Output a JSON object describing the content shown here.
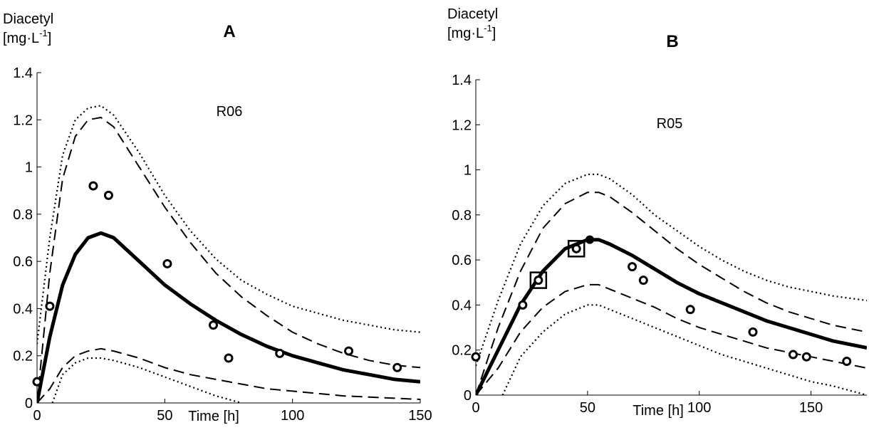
{
  "chart_data": [
    {
      "type": "line",
      "panel_letter": "A",
      "run_label": "R06",
      "ylabel_line1": "Diacetyl",
      "ylabel_line2": "[mg·L",
      "ylabel_exp": "-1",
      "ylabel_close": "]",
      "xlabel": "Time [h]",
      "xlim": [
        0,
        150
      ],
      "ylim": [
        0,
        1.4
      ],
      "xticks": [
        0,
        50,
        100,
        150
      ],
      "yticks": [
        0,
        0.2,
        0.4,
        0.6,
        0.8,
        1,
        1.2,
        1.4
      ],
      "ytick_labels": [
        "0",
        "0.2",
        "0.4",
        "0.6",
        "0.8",
        "1",
        "1.2",
        "1.4"
      ],
      "series": [
        {
          "style": "solid",
          "x": [
            0,
            5,
            10,
            15,
            20,
            25,
            30,
            40,
            50,
            60,
            70,
            80,
            90,
            100,
            110,
            120,
            130,
            140,
            150
          ],
          "y": [
            0,
            0.28,
            0.5,
            0.63,
            0.7,
            0.72,
            0.7,
            0.6,
            0.5,
            0.42,
            0.35,
            0.29,
            0.24,
            0.2,
            0.17,
            0.14,
            0.12,
            0.1,
            0.09
          ]
        },
        {
          "style": "dashed",
          "x": [
            0,
            5,
            10,
            15,
            20,
            25,
            30,
            40,
            50,
            60,
            70,
            80,
            90,
            100,
            110,
            120,
            130,
            140,
            150
          ],
          "y": [
            0,
            0.55,
            0.95,
            1.13,
            1.2,
            1.21,
            1.17,
            1.0,
            0.83,
            0.68,
            0.55,
            0.45,
            0.37,
            0.3,
            0.25,
            0.21,
            0.18,
            0.16,
            0.15
          ]
        },
        {
          "style": "dashed",
          "x": [
            0,
            5,
            10,
            15,
            20,
            25,
            30,
            40,
            50,
            60,
            70,
            80,
            90,
            100,
            110,
            120,
            130,
            140,
            150
          ],
          "y": [
            0,
            0.06,
            0.15,
            0.2,
            0.22,
            0.23,
            0.22,
            0.19,
            0.15,
            0.12,
            0.1,
            0.08,
            0.06,
            0.05,
            0.04,
            0.03,
            0.025,
            0.02,
            0.015
          ]
        },
        {
          "style": "dotted",
          "x": [
            0,
            5,
            10,
            15,
            20,
            25,
            30,
            40,
            50,
            60,
            70,
            80,
            90,
            100,
            110,
            120,
            130,
            140,
            150
          ],
          "y": [
            0.25,
            0.7,
            1.05,
            1.2,
            1.25,
            1.26,
            1.22,
            1.06,
            0.88,
            0.73,
            0.61,
            0.52,
            0.46,
            0.41,
            0.38,
            0.35,
            0.33,
            0.31,
            0.3
          ]
        },
        {
          "style": "dotted",
          "x": [
            6,
            10,
            15,
            20,
            25,
            30,
            40,
            50,
            60,
            70,
            80
          ],
          "y": [
            0,
            0.12,
            0.17,
            0.19,
            0.19,
            0.18,
            0.15,
            0.11,
            0.07,
            0.03,
            0
          ]
        }
      ],
      "points": {
        "x": [
          0,
          5,
          22,
          28,
          51,
          69,
          75,
          95,
          122,
          141
        ],
        "y": [
          0.09,
          0.41,
          0.92,
          0.88,
          0.59,
          0.33,
          0.19,
          0.21,
          0.22,
          0.15
        ]
      },
      "highlighted": {
        "x": [],
        "y": []
      },
      "filled_point": null
    },
    {
      "type": "line",
      "panel_letter": "B",
      "run_label": "R05",
      "ylabel_line1": "Diacetyl",
      "ylabel_line2": "[mg·L",
      "ylabel_exp": "-1",
      "ylabel_close": "]",
      "xlabel": "Time [h]",
      "xlim": [
        0,
        175
      ],
      "ylim": [
        0,
        1.4
      ],
      "xticks": [
        0,
        50,
        100,
        150
      ],
      "yticks": [
        0,
        0.2,
        0.4,
        0.6,
        0.8,
        1,
        1.2,
        1.4
      ],
      "ytick_labels": [
        "0",
        "0.2",
        "0.4",
        "0.6",
        "0.8",
        "1",
        "1.2",
        "1.4"
      ],
      "series": [
        {
          "style": "solid",
          "x": [
            0,
            10,
            20,
            30,
            40,
            50,
            55,
            60,
            70,
            80,
            90,
            100,
            110,
            120,
            130,
            140,
            150,
            160,
            175
          ],
          "y": [
            0,
            0.2,
            0.4,
            0.55,
            0.65,
            0.69,
            0.69,
            0.67,
            0.62,
            0.56,
            0.5,
            0.45,
            0.41,
            0.37,
            0.33,
            0.3,
            0.27,
            0.24,
            0.21
          ]
        },
        {
          "style": "dashed",
          "x": [
            0,
            10,
            20,
            30,
            40,
            50,
            55,
            60,
            70,
            80,
            90,
            100,
            110,
            120,
            130,
            140,
            150,
            160,
            175
          ],
          "y": [
            0,
            0.3,
            0.55,
            0.74,
            0.85,
            0.9,
            0.9,
            0.88,
            0.81,
            0.73,
            0.65,
            0.58,
            0.52,
            0.46,
            0.41,
            0.37,
            0.34,
            0.31,
            0.28
          ]
        },
        {
          "style": "dashed",
          "x": [
            0,
            10,
            20,
            30,
            40,
            50,
            55,
            60,
            70,
            80,
            90,
            100,
            110,
            120,
            130,
            140,
            150,
            160,
            175
          ],
          "y": [
            0,
            0.12,
            0.28,
            0.39,
            0.46,
            0.49,
            0.49,
            0.47,
            0.43,
            0.39,
            0.34,
            0.3,
            0.27,
            0.24,
            0.21,
            0.19,
            0.17,
            0.15,
            0.12
          ]
        },
        {
          "style": "dotted",
          "x": [
            0,
            10,
            20,
            30,
            40,
            50,
            55,
            60,
            70,
            80,
            90,
            100,
            110,
            120,
            130,
            140,
            150,
            160,
            175
          ],
          "y": [
            0.13,
            0.42,
            0.67,
            0.84,
            0.94,
            0.98,
            0.98,
            0.96,
            0.89,
            0.8,
            0.73,
            0.66,
            0.6,
            0.55,
            0.51,
            0.48,
            0.46,
            0.44,
            0.42
          ]
        },
        {
          "style": "dotted",
          "x": [
            12,
            20,
            30,
            40,
            50,
            55,
            60,
            70,
            80,
            90,
            100,
            110,
            120,
            130,
            140,
            150,
            160,
            175
          ],
          "y": [
            0,
            0.17,
            0.28,
            0.36,
            0.4,
            0.4,
            0.38,
            0.34,
            0.3,
            0.26,
            0.22,
            0.18,
            0.15,
            0.12,
            0.09,
            0.06,
            0.04,
            0
          ]
        }
      ],
      "points": {
        "x": [
          0,
          21,
          28,
          45,
          70,
          75,
          96,
          124,
          142,
          148,
          166
        ],
        "y": [
          0.17,
          0.4,
          0.51,
          0.65,
          0.57,
          0.51,
          0.38,
          0.28,
          0.18,
          0.17,
          0.15
        ]
      },
      "highlighted": {
        "x": [
          28,
          45
        ],
        "y": [
          0.51,
          0.65
        ]
      },
      "filled_point": {
        "x": 51,
        "y": 0.69
      }
    }
  ]
}
